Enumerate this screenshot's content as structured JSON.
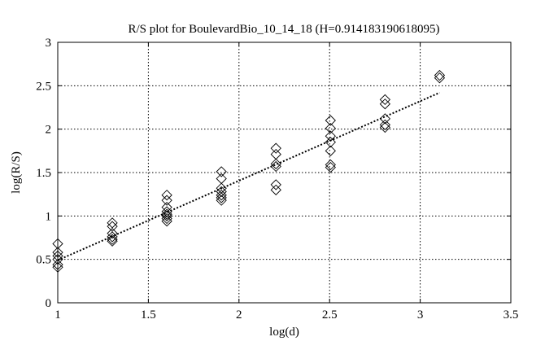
{
  "chart_data": {
    "type": "scatter",
    "title": "R/S plot for BoulevardBio_10_14_18 (H=0.914183190618095)",
    "xlabel": "log(d)",
    "ylabel": "log(R/S)",
    "xlim": [
      1,
      3.5
    ],
    "ylim": [
      0,
      3
    ],
    "xticks": [
      "1",
      "1.5",
      "2",
      "2.5",
      "3",
      "3.5"
    ],
    "yticks": [
      "0",
      "0.5",
      "1",
      "1.5",
      "2",
      "2.5",
      "3"
    ],
    "grid": true,
    "marker": "diamond",
    "series": [
      {
        "points": [
          [
            1.0,
            0.68
          ],
          [
            1.0,
            0.58
          ],
          [
            1.0,
            0.54
          ],
          [
            1.0,
            0.5
          ],
          [
            1.0,
            0.44
          ],
          [
            1.0,
            0.41
          ],
          [
            1.301,
            0.92
          ],
          [
            1.301,
            0.88
          ],
          [
            1.301,
            0.8
          ],
          [
            1.301,
            0.76
          ],
          [
            1.301,
            0.73
          ],
          [
            1.301,
            0.71
          ],
          [
            1.602,
            1.24
          ],
          [
            1.602,
            1.18
          ],
          [
            1.602,
            1.1
          ],
          [
            1.602,
            1.05
          ],
          [
            1.602,
            1.02
          ],
          [
            1.602,
            1.0
          ],
          [
            1.602,
            0.97
          ],
          [
            1.602,
            0.94
          ],
          [
            1.903,
            1.51
          ],
          [
            1.903,
            1.43
          ],
          [
            1.903,
            1.32
          ],
          [
            1.903,
            1.28
          ],
          [
            1.903,
            1.24
          ],
          [
            1.903,
            1.21
          ],
          [
            1.903,
            1.18
          ],
          [
            2.204,
            1.78
          ],
          [
            2.204,
            1.71
          ],
          [
            2.204,
            1.6
          ],
          [
            2.204,
            1.57
          ],
          [
            2.204,
            1.36
          ],
          [
            2.204,
            1.3
          ],
          [
            2.505,
            2.1
          ],
          [
            2.505,
            2.01
          ],
          [
            2.505,
            1.92
          ],
          [
            2.505,
            1.85
          ],
          [
            2.505,
            1.75
          ],
          [
            2.505,
            1.59
          ],
          [
            2.505,
            1.56
          ],
          [
            2.806,
            2.34
          ],
          [
            2.806,
            2.29
          ],
          [
            2.806,
            2.12
          ],
          [
            2.806,
            2.05
          ],
          [
            2.806,
            2.02
          ],
          [
            3.107,
            2.62
          ],
          [
            3.107,
            2.59
          ]
        ]
      }
    ],
    "fit_line": {
      "x": [
        1.0,
        3.107
      ],
      "y": [
        0.49,
        2.42
      ]
    }
  }
}
